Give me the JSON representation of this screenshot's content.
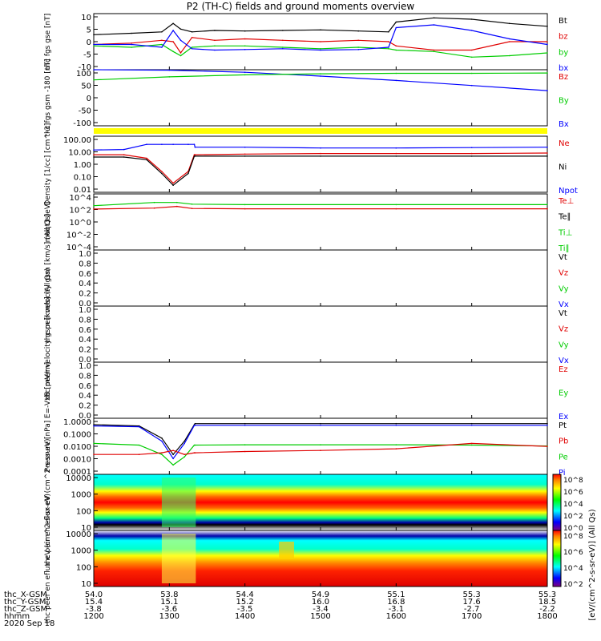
{
  "title": "P2 (TH-C) fields and ground moments overview",
  "date_label": "2020 Sep 18",
  "x_axis": {
    "rows": [
      {
        "label": "thc_X-GSM",
        "values": [
          "54.0",
          "53.8",
          "54.4",
          "54.9",
          "55.1",
          "55.3",
          "55.3"
        ]
      },
      {
        "label": "thc_Y-GSM",
        "values": [
          "15.4",
          "15.1",
          "15.2",
          "16.0",
          "16.8",
          "17.6",
          "18.5"
        ]
      },
      {
        "label": "thc_Z-GSM",
        "values": [
          "-3.8",
          "-3.6",
          "-3.5",
          "-3.4",
          "-3.1",
          "-2.7",
          "-2.2"
        ]
      },
      {
        "label": "hhmm",
        "values": [
          "1200",
          "1300",
          "1400",
          "1500",
          "1600",
          "1700",
          "1800"
        ]
      }
    ]
  },
  "colors": {
    "black": "#000000",
    "red": "#e00000",
    "green": "#00cc00",
    "blue": "#0000ff",
    "yellow": "#ffff00"
  },
  "colorbar_label": "[eV/(cm^2-s-sr-eV)] (All Qs)",
  "chart_data": [
    {
      "id": "fgs_dsl",
      "type": "line",
      "ylabel": "thc fgs gse [nT]",
      "ylim": [
        -10,
        10
      ],
      "yticks": [
        "10",
        "5",
        "0",
        "-5",
        "-10"
      ],
      "legend": [
        {
          "text": "Bt",
          "color": "#000000"
        },
        {
          "text": "bz",
          "color": "#e00000"
        },
        {
          "text": "by",
          "color": "#00cc00"
        },
        {
          "text": "bx",
          "color": "#0000ff"
        }
      ],
      "x": [
        12.0,
        12.5,
        12.9,
        13.05,
        13.15,
        13.3,
        13.6,
        14.0,
        14.5,
        15.0,
        15.5,
        15.9,
        16.0,
        16.5,
        17.0,
        17.5,
        18.0
      ],
      "series": [
        {
          "name": "Bt",
          "values": [
            2.5,
            3.0,
            3.5,
            6.5,
            4.5,
            3.5,
            4.0,
            3.8,
            4.0,
            4.2,
            3.8,
            3.5,
            7.0,
            8.5,
            8.0,
            6.5,
            5.5
          ]
        },
        {
          "name": "bz",
          "values": [
            -1.0,
            -0.5,
            0.5,
            0.0,
            -4.0,
            1.5,
            0.5,
            1.0,
            0.5,
            0.0,
            0.5,
            0.0,
            -1.5,
            -3.0,
            -3.0,
            0.0,
            0.0
          ]
        },
        {
          "name": "by",
          "values": [
            -1.5,
            -2.0,
            -1.0,
            -3.5,
            -5.0,
            -2.0,
            -1.5,
            -1.5,
            -2.0,
            -2.5,
            -2.0,
            -2.5,
            -3.0,
            -3.5,
            -5.5,
            -5.0,
            -4.0
          ]
        },
        {
          "name": "bx",
          "values": [
            -1.0,
            -1.0,
            -2.0,
            4.0,
            0.5,
            -2.5,
            -3.0,
            -2.8,
            -2.5,
            -3.0,
            -2.8,
            -2.0,
            5.0,
            6.0,
            4.0,
            1.0,
            -1.0
          ]
        }
      ]
    },
    {
      "id": "fgs_gsm",
      "type": "line",
      "ylabel": "thc fgs gsm -180 [nT]",
      "ylim": [
        -120,
        100
      ],
      "yticks": [
        "100",
        "50",
        "0",
        "-50",
        "-100"
      ],
      "legend": [
        {
          "text": "Bz",
          "color": "#e00000"
        },
        {
          "text": "By",
          "color": "#00cc00"
        },
        {
          "text": "Bx",
          "color": "#0000ff"
        }
      ],
      "x": [
        12.0,
        13.0,
        14.0,
        15.0,
        16.0,
        17.0,
        18.0
      ],
      "series": [
        {
          "name": "Bx",
          "values": [
            100,
            98,
            90,
            75,
            58,
            38,
            18
          ]
        },
        {
          "name": "By",
          "values": [
            60,
            72,
            80,
            84,
            86,
            86,
            87
          ]
        }
      ]
    },
    {
      "id": "density",
      "type": "line",
      "scale": "log",
      "ylabel": "Density [1/cc] [cm^-3]",
      "ylim": [
        0.005,
        300
      ],
      "yticks": [
        "100.00",
        "10.00",
        "1.00",
        "0.10",
        "0.01"
      ],
      "legend": [
        {
          "text": "Ne",
          "color": "#e00000"
        },
        {
          "text": "Ni",
          "color": "#000000"
        },
        {
          "text": "Npot",
          "color": "#0000ff"
        }
      ],
      "x": [
        12.0,
        12.4,
        12.7,
        12.9,
        13.05,
        13.25,
        13.33,
        13.34,
        14.0,
        15.0,
        16.0,
        17.0,
        18.0
      ],
      "series": [
        {
          "name": "Npot",
          "values": [
            20,
            22,
            60,
            60,
            60,
            60,
            60,
            35,
            35,
            30,
            30,
            32,
            35
          ]
        },
        {
          "name": "Ne",
          "values": [
            8,
            8,
            4,
            0.3,
            0.03,
            0.3,
            8,
            8,
            9,
            10,
            10,
            10,
            11
          ]
        },
        {
          "name": "Ni",
          "values": [
            5,
            5,
            3,
            0.2,
            0.02,
            0.2,
            6,
            6,
            6,
            6,
            6,
            6,
            6
          ]
        }
      ]
    },
    {
      "id": "temperature",
      "type": "line",
      "scale": "log",
      "ylabel": "moqt3 [eV]",
      "ylim": [
        1e-05,
        100000
      ],
      "yticks": [
        "10^4",
        "10^2",
        "10^0",
        "10^-2",
        "10^-4"
      ],
      "legend": [
        {
          "text": "Te⊥",
          "color": "#e00000"
        },
        {
          "text": "Te∥",
          "color": "#000000"
        },
        {
          "text": "Ti⊥",
          "color": "#00cc00"
        },
        {
          "text": "Ti∥",
          "color": "#00cc00"
        }
      ],
      "x": [
        12.0,
        12.8,
        13.1,
        13.3,
        14.0,
        16.0,
        18.0
      ],
      "series": [
        {
          "name": "Ti",
          "values": [
            800,
            3000,
            3000,
            1500,
            1200,
            1200,
            1200
          ]
        },
        {
          "name": "Te",
          "values": [
            200,
            300,
            600,
            250,
            220,
            220,
            220
          ]
        }
      ]
    },
    {
      "id": "peir_velocity",
      "type": "line",
      "ylabel": "thc peir velocity gsm [km/s] (All Qs)",
      "ylim": [
        0.0,
        1.0
      ],
      "yticks": [
        "1.0",
        "0.8",
        "0.6",
        "0.4",
        "0.2",
        "0.0"
      ],
      "legend": [
        {
          "text": "Vt",
          "color": "#000000"
        },
        {
          "text": "Vz",
          "color": "#e00000"
        },
        {
          "text": "Vy",
          "color": "#00cc00"
        },
        {
          "text": "Vx",
          "color": "#0000ff"
        }
      ]
    },
    {
      "id": "peer_velocity",
      "type": "line",
      "ylabel": "thc peer velocity gsm [km/s] (All Qs)",
      "ylim": [
        0.0,
        1.0
      ],
      "yticks": [
        "1.0",
        "0.8",
        "0.6",
        "0.4",
        "0.2",
        "0.0"
      ],
      "legend": [
        {
          "text": "Vt",
          "color": "#000000"
        },
        {
          "text": "Vz",
          "color": "#e00000"
        },
        {
          "text": "Vy",
          "color": "#00cc00"
        },
        {
          "text": "Vx",
          "color": "#0000ff"
        }
      ]
    },
    {
      "id": "efield",
      "type": "line",
      "ylabel": "E=-VxB [mV/m]",
      "ylim": [
        0.0,
        1.0
      ],
      "yticks": [
        "1.0",
        "0.8",
        "0.6",
        "0.4",
        "0.2",
        "0.0"
      ],
      "legend": [
        {
          "text": "Ez",
          "color": "#e00000"
        },
        {
          "text": "Ey",
          "color": "#00cc00"
        },
        {
          "text": "Ex",
          "color": "#0000ff"
        }
      ]
    },
    {
      "id": "pressure",
      "type": "line",
      "scale": "log",
      "ylabel": "Pressure [nPa]",
      "ylim": [
        0.0001,
        1.5
      ],
      "yticks": [
        "1.0000",
        "0.1000",
        "0.0100",
        "0.0010",
        "0.0001"
      ],
      "legend": [
        {
          "text": "Pt",
          "color": "#000000"
        },
        {
          "text": "Pb",
          "color": "#e00000"
        },
        {
          "text": "Pe",
          "color": "#00cc00"
        },
        {
          "text": "Pi",
          "color": "#0000ff"
        }
      ],
      "x": [
        12.0,
        12.6,
        12.9,
        13.05,
        13.2,
        13.33,
        13.34,
        14.0,
        15.0,
        16.0,
        17.0,
        18.0
      ],
      "series": [
        {
          "name": "Pt",
          "values": [
            0.5,
            0.4,
            0.05,
            0.003,
            0.03,
            0.5,
            0.6,
            0.6,
            0.6,
            0.6,
            0.6,
            0.6
          ]
        },
        {
          "name": "Pi",
          "values": [
            0.4,
            0.35,
            0.03,
            0.0015,
            0.02,
            0.45,
            0.45,
            0.45,
            0.45,
            0.45,
            0.45,
            0.45
          ]
        },
        {
          "name": "Pe",
          "values": [
            0.02,
            0.015,
            0.003,
            0.0005,
            0.002,
            0.015,
            0.015,
            0.016,
            0.016,
            0.016,
            0.015,
            0.013
          ]
        },
        {
          "name": "Pb",
          "values": [
            0.003,
            0.003,
            0.004,
            0.006,
            0.003,
            0.004,
            0.004,
            0.005,
            0.006,
            0.008,
            0.02,
            0.012
          ]
        }
      ]
    },
    {
      "id": "peir_en_eflux",
      "type": "heatmap",
      "scale": "log",
      "ylabel": "thc peir en eflux eV (cm^2-s-sr-eV)",
      "ylim": [
        5,
        10000
      ],
      "yticks": [
        "10000",
        "1000",
        "100",
        "10"
      ],
      "colorbar_ticks": [
        "10^8",
        "10^6",
        "10^4",
        "10^2",
        "10^0"
      ],
      "colorbar_ticks_top": "10^8"
    },
    {
      "id": "peer_en_eflux",
      "type": "heatmap",
      "scale": "log",
      "ylabel": "thc peer en eflux eV (cm^2-s-sr-eV)",
      "ylim": [
        5,
        20000
      ],
      "yticks": [
        "10000",
        "1000",
        "100",
        "10"
      ],
      "colorbar_ticks": [
        "10^8",
        "10^6",
        "10^4",
        "10^2"
      ]
    }
  ]
}
